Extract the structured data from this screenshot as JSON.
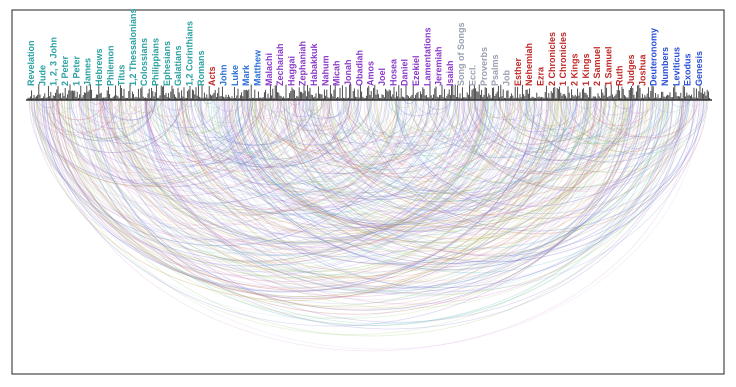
{
  "diagram": {
    "books": [
      {
        "name": "Revelation",
        "color": "#2aa0a0"
      },
      {
        "name": "Jude",
        "color": "#2aa0a0"
      },
      {
        "name": "1, 2, 3 John",
        "color": "#2aa0a0"
      },
      {
        "name": "2 Peter",
        "color": "#2aa0a0"
      },
      {
        "name": "1 Peter",
        "color": "#2aa0a0"
      },
      {
        "name": "James",
        "color": "#2aa0a0"
      },
      {
        "name": "Hebrews",
        "color": "#2aa0a0"
      },
      {
        "name": "Philemon",
        "color": "#2aa0a0"
      },
      {
        "name": "Titus",
        "color": "#2aa0a0"
      },
      {
        "name": "1,2 Thessalonians",
        "color": "#2aa0a0"
      },
      {
        "name": "Colossians",
        "color": "#2aa0a0"
      },
      {
        "name": "Philippians",
        "color": "#2aa0a0"
      },
      {
        "name": "Ephesians",
        "color": "#2aa0a0"
      },
      {
        "name": "Galatians",
        "color": "#2aa0a0"
      },
      {
        "name": "1,2 Corinthians",
        "color": "#2aa0a0"
      },
      {
        "name": "Romans",
        "color": "#2aa0a0"
      },
      {
        "name": "Acts",
        "color": "#c02828"
      },
      {
        "name": "John",
        "color": "#2a6fd6"
      },
      {
        "name": "Luke",
        "color": "#2a6fd6"
      },
      {
        "name": "Mark",
        "color": "#2a6fd6"
      },
      {
        "name": "Matthew",
        "color": "#2a6fd6"
      },
      {
        "name": "Malachi",
        "color": "#8a3ac8"
      },
      {
        "name": "Zechariah",
        "color": "#8a3ac8"
      },
      {
        "name": "Haggai",
        "color": "#8a3ac8"
      },
      {
        "name": "Zephaniah",
        "color": "#8a3ac8"
      },
      {
        "name": "Habakkuk",
        "color": "#8a3ac8"
      },
      {
        "name": "Nahum",
        "color": "#8a3ac8"
      },
      {
        "name": "Micah",
        "color": "#8a3ac8"
      },
      {
        "name": "Jonah",
        "color": "#8a3ac8"
      },
      {
        "name": "Obadiah",
        "color": "#8a3ac8"
      },
      {
        "name": "Amos",
        "color": "#8a3ac8"
      },
      {
        "name": "Joel",
        "color": "#8a3ac8"
      },
      {
        "name": "Hosea",
        "color": "#8a3ac8"
      },
      {
        "name": "Daniel",
        "color": "#8a3ac8"
      },
      {
        "name": "Ezekiel",
        "color": "#8a3ac8"
      },
      {
        "name": "Lamentations",
        "color": "#8a3ac8"
      },
      {
        "name": "Jeremiah",
        "color": "#8a3ac8"
      },
      {
        "name": "Isaiah",
        "color": "#8a3ac8"
      },
      {
        "name": "Song of Songs",
        "color": "#9aa0b0"
      },
      {
        "name": "Eccl.",
        "color": "#9aa0b0"
      },
      {
        "name": "Proverbs",
        "color": "#9aa0b0"
      },
      {
        "name": "Psalms",
        "color": "#9aa0b0"
      },
      {
        "name": "Job",
        "color": "#9aa0b0"
      },
      {
        "name": "Esther",
        "color": "#c02828"
      },
      {
        "name": "Nehemiah",
        "color": "#c02828"
      },
      {
        "name": "Ezra",
        "color": "#c02828"
      },
      {
        "name": "2 Chronicles",
        "color": "#c02828"
      },
      {
        "name": "1 Chronicles",
        "color": "#c02828"
      },
      {
        "name": "2 Kings",
        "color": "#c02828"
      },
      {
        "name": "1 Kings",
        "color": "#c02828"
      },
      {
        "name": "2 Samuel",
        "color": "#c02828"
      },
      {
        "name": "1 Samuel",
        "color": "#c02828"
      },
      {
        "name": "Ruth",
        "color": "#c02828"
      },
      {
        "name": "Judges",
        "color": "#c02828"
      },
      {
        "name": "Joshua",
        "color": "#c02828"
      },
      {
        "name": "Deuteronomy",
        "color": "#2a4fd6"
      },
      {
        "name": "Numbers",
        "color": "#2a4fd6"
      },
      {
        "name": "Leviticus",
        "color": "#2a4fd6"
      },
      {
        "name": "Exodus",
        "color": "#2a4fd6"
      },
      {
        "name": "Genesis",
        "color": "#2a4fd6"
      }
    ],
    "arc_colors": [
      "#8fbf5a",
      "#c56a6a",
      "#7e6fd0",
      "#d78ac0",
      "#6fc1c9",
      "#a08be0",
      "#c9a24c",
      "#5a6fc0"
    ]
  }
}
